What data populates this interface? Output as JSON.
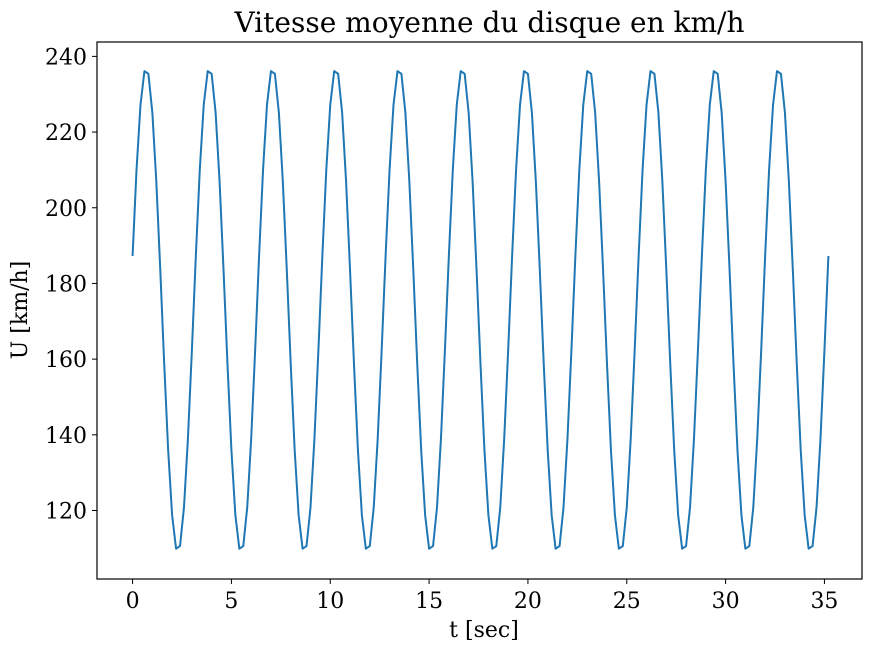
{
  "chart_data": {
    "type": "line",
    "title": "Vitesse moyenne du disque en km/h",
    "xlabel": "t [sec]",
    "ylabel": "U [km/h]",
    "xlim": [
      -1.8,
      36.9
    ],
    "ylim": [
      101.9,
      243.8
    ],
    "xticks": [
      0,
      5,
      10,
      15,
      20,
      25,
      30,
      35
    ],
    "xtick_labels": [
      "0",
      "5",
      "10",
      "15",
      "20",
      "25",
      "30",
      "35"
    ],
    "yticks": [
      120,
      140,
      160,
      180,
      200,
      220,
      240
    ],
    "ytick_labels": [
      "120",
      "140",
      "160",
      "180",
      "200",
      "220",
      "240"
    ],
    "grid": false,
    "series": [
      {
        "color": "#1f77b4",
        "model": {
          "t_start": 0,
          "t_end": 35.3,
          "sample_step": 0.2,
          "mean": 173,
          "amplitude": 64,
          "period": 3.2,
          "phase_offset": 0.0358
        }
      }
    ]
  }
}
